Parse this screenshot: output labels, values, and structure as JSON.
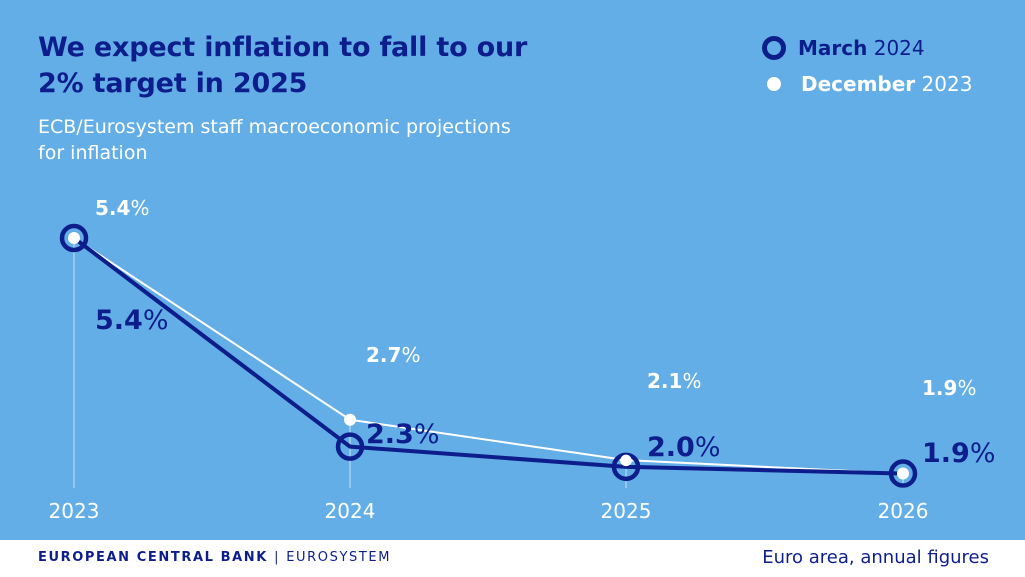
{
  "header": {
    "title_line1": "We expect inflation to fall to our",
    "title_line2": "2% target in 2025",
    "subtitle_line1": "ECB/Eurosystem staff macroeconomic projections",
    "subtitle_line2": "for inflation"
  },
  "legend": {
    "march": {
      "month": "March",
      "year": "2024"
    },
    "december": {
      "month": "December",
      "year": "2023"
    }
  },
  "footer": {
    "org": "EUROPEAN CENTRAL BANK",
    "separator": "|",
    "system": "EUROSYSTEM",
    "note": "Euro area, annual figures"
  },
  "colors": {
    "background": "#63aee6",
    "march_2024": "#0d1e8c",
    "december_2023": "#ffffff",
    "axis_text": "#ffffff"
  },
  "chart_data": {
    "type": "line",
    "title": "We expect inflation to fall to our 2% target in 2025",
    "subtitle": "ECB/Eurosystem staff macroeconomic projections for inflation",
    "categories": [
      "2023",
      "2024",
      "2025",
      "2026"
    ],
    "unit": "%",
    "series": [
      {
        "name": "March 2024",
        "values": [
          5.4,
          2.3,
          2.0,
          1.9
        ],
        "labels": [
          "5.4",
          "2.3",
          "2.0",
          "1.9"
        ],
        "marker": "ring",
        "color": "#0d1e8c"
      },
      {
        "name": "December 2023",
        "values": [
          5.4,
          2.7,
          2.1,
          1.9
        ],
        "labels": [
          "5.4",
          "2.7",
          "2.1",
          "1.9"
        ],
        "marker": "dot",
        "color": "#ffffff"
      }
    ],
    "ylim": [
      1.6,
      5.4
    ],
    "grid": false,
    "legend_position": "top-right"
  }
}
